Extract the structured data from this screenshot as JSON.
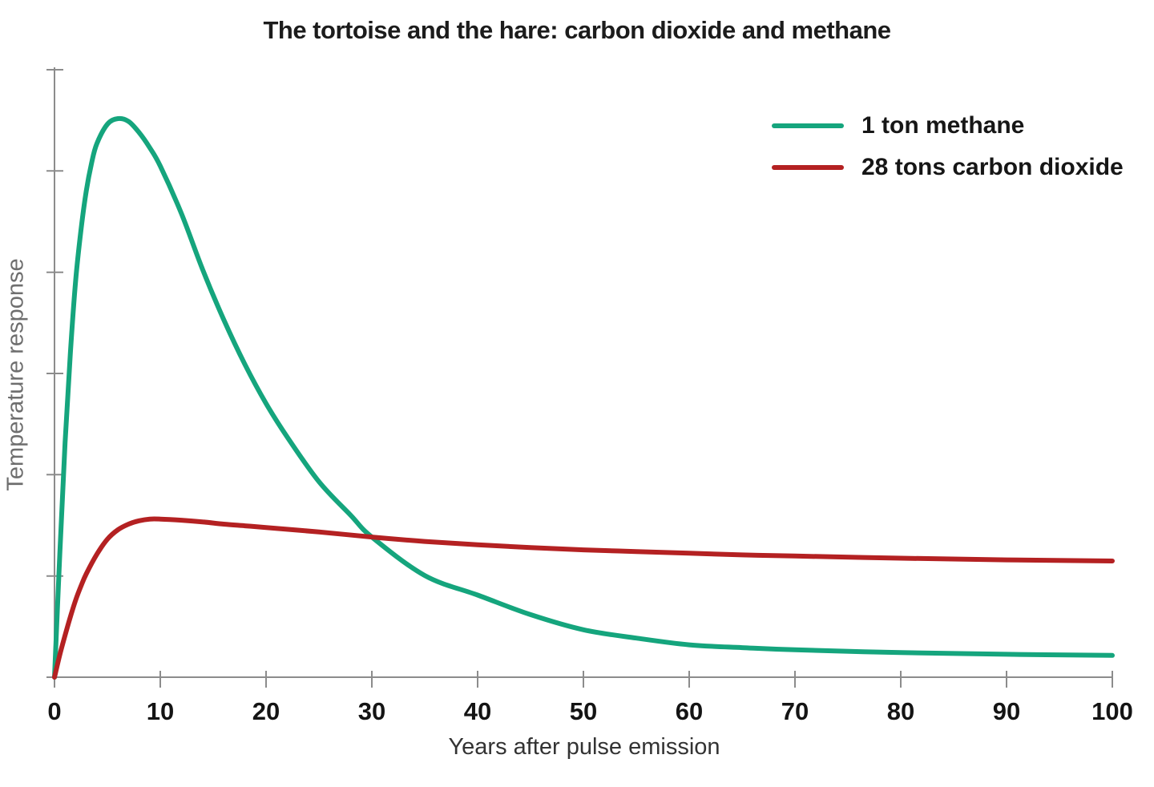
{
  "chart": {
    "title": "The tortoise and the hare: carbon dioxide and methane"
  },
  "chart_data": {
    "type": "line",
    "title": "The tortoise and the hare: carbon dioxide and methane",
    "xlabel": "Years after pulse emission",
    "ylabel": "Temperature response",
    "xlim": [
      0,
      100
    ],
    "ylim": [
      0,
      1.09
    ],
    "x_tick_labels": [
      "0",
      "10",
      "20",
      "30",
      "40",
      "50",
      "60",
      "70",
      "80",
      "90",
      "100"
    ],
    "x_ticks": [
      0,
      10,
      20,
      30,
      40,
      50,
      60,
      70,
      80,
      90,
      100
    ],
    "y_ticks_unlabeled": 7,
    "y_units": "relative temperature response (methane peak = 1.0)",
    "grid": false,
    "legend_position": "upper right",
    "colors": {
      "methane": "#15a57d",
      "co2": "#b42122",
      "axis": "#8c8c8c",
      "tick_label": "#141414"
    },
    "series": [
      {
        "name": "1 ton methane",
        "color": "#15a57d",
        "x": [
          0,
          0.5,
          1,
          1.5,
          2,
          2.5,
          3,
          3.5,
          4,
          5,
          6,
          7,
          8,
          9,
          10,
          12,
          14,
          16,
          18,
          20,
          22,
          25,
          28,
          30,
          35,
          40,
          45,
          50,
          55,
          60,
          65,
          70,
          80,
          90,
          100
        ],
        "y": [
          0,
          0.22,
          0.42,
          0.58,
          0.71,
          0.8,
          0.87,
          0.92,
          0.955,
          0.99,
          1.0,
          0.995,
          0.975,
          0.948,
          0.915,
          0.83,
          0.73,
          0.64,
          0.56,
          0.49,
          0.43,
          0.35,
          0.29,
          0.251,
          0.182,
          0.147,
          0.112,
          0.085,
          0.07,
          0.058,
          0.053,
          0.049,
          0.044,
          0.041,
          0.039
        ]
      },
      {
        "name": "28 tons carbon dioxide",
        "color": "#b42122",
        "x": [
          0,
          0.5,
          1,
          1.5,
          2,
          2.5,
          3,
          4,
          5,
          6,
          7,
          8,
          9,
          10,
          12,
          14,
          16,
          18,
          20,
          25,
          30,
          35,
          40,
          45,
          50,
          55,
          60,
          65,
          70,
          80,
          90,
          100
        ],
        "y": [
          0,
          0.04,
          0.075,
          0.108,
          0.138,
          0.163,
          0.185,
          0.22,
          0.247,
          0.264,
          0.274,
          0.28,
          0.283,
          0.283,
          0.281,
          0.278,
          0.274,
          0.271,
          0.268,
          0.26,
          0.251,
          0.243,
          0.237,
          0.232,
          0.228,
          0.225,
          0.222,
          0.219,
          0.217,
          0.213,
          0.21,
          0.208
        ]
      }
    ],
    "annotations": {
      "crossover_year": 30,
      "methane_peak_year": 6,
      "co2_peak_year": 9
    }
  },
  "legend": {
    "items": [
      {
        "label": "1 ton methane",
        "color": "#15a57d"
      },
      {
        "label": "28 tons carbon dioxide",
        "color": "#b42122"
      }
    ]
  }
}
